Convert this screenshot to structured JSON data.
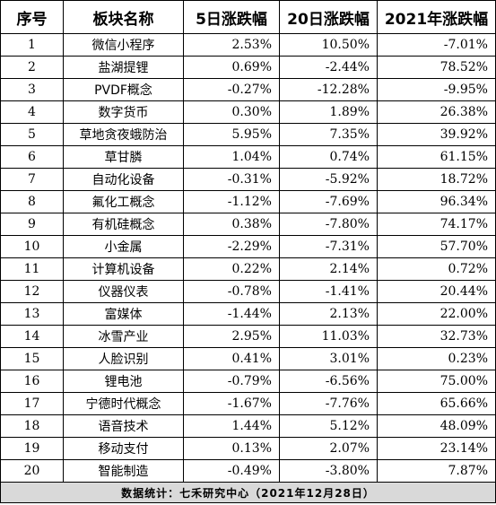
{
  "headers": {
    "seq": "序号",
    "name": "板块名称",
    "d5": "5日涨跌幅",
    "d20": "20日涨跌幅",
    "y2021": "2021年涨跌幅"
  },
  "rows": [
    {
      "seq": "1",
      "name": "微信小程序",
      "d5": "2.53%",
      "d20": "10.50%",
      "y2021": "-7.01%"
    },
    {
      "seq": "2",
      "name": "盐湖提锂",
      "d5": "0.69%",
      "d20": "-2.44%",
      "y2021": "78.52%"
    },
    {
      "seq": "3",
      "name": "PVDF概念",
      "d5": "-0.27%",
      "d20": "-12.28%",
      "y2021": "-9.95%"
    },
    {
      "seq": "4",
      "name": "数字货币",
      "d5": "0.30%",
      "d20": "1.89%",
      "y2021": "26.38%"
    },
    {
      "seq": "5",
      "name": "草地贪夜蛾防治",
      "d5": "5.95%",
      "d20": "7.35%",
      "y2021": "39.92%"
    },
    {
      "seq": "6",
      "name": "草甘膦",
      "d5": "1.04%",
      "d20": "0.74%",
      "y2021": "61.15%"
    },
    {
      "seq": "7",
      "name": "自动化设备",
      "d5": "-0.31%",
      "d20": "-5.92%",
      "y2021": "18.72%"
    },
    {
      "seq": "8",
      "name": "氟化工概念",
      "d5": "-1.12%",
      "d20": "-7.69%",
      "y2021": "96.34%"
    },
    {
      "seq": "9",
      "name": "有机硅概念",
      "d5": "0.38%",
      "d20": "-7.80%",
      "y2021": "74.17%"
    },
    {
      "seq": "10",
      "name": "小金属",
      "d5": "-2.29%",
      "d20": "-7.31%",
      "y2021": "57.70%"
    },
    {
      "seq": "11",
      "name": "计算机设备",
      "d5": "0.22%",
      "d20": "2.14%",
      "y2021": "0.72%"
    },
    {
      "seq": "12",
      "name": "仪器仪表",
      "d5": "-0.78%",
      "d20": "-1.41%",
      "y2021": "20.44%"
    },
    {
      "seq": "13",
      "name": "富媒体",
      "d5": "-1.44%",
      "d20": "2.13%",
      "y2021": "22.00%"
    },
    {
      "seq": "14",
      "name": "冰雪产业",
      "d5": "2.95%",
      "d20": "11.03%",
      "y2021": "32.73%"
    },
    {
      "seq": "15",
      "name": "人脸识别",
      "d5": "0.41%",
      "d20": "3.01%",
      "y2021": "0.23%"
    },
    {
      "seq": "16",
      "name": "锂电池",
      "d5": "-0.79%",
      "d20": "-6.56%",
      "y2021": "75.00%"
    },
    {
      "seq": "17",
      "name": "宁德时代概念",
      "d5": "-1.67%",
      "d20": "-7.76%",
      "y2021": "65.66%"
    },
    {
      "seq": "18",
      "name": "语音技术",
      "d5": "1.44%",
      "d20": "5.12%",
      "y2021": "48.09%"
    },
    {
      "seq": "19",
      "name": "移动支付",
      "d5": "0.13%",
      "d20": "2.07%",
      "y2021": "23.14%"
    },
    {
      "seq": "20",
      "name": "智能制造",
      "d5": "-0.49%",
      "d20": "-3.80%",
      "y2021": "7.87%"
    }
  ],
  "footer": {
    "note": "数据统计：七禾研究中心（2021年12月28日）"
  }
}
